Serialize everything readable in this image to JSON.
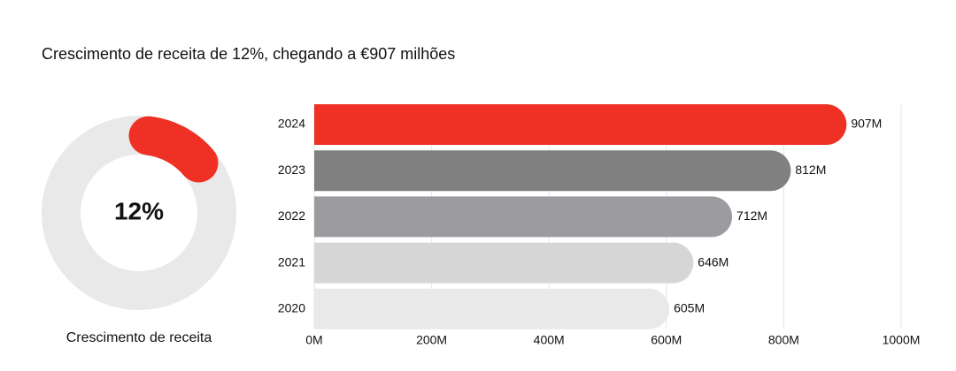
{
  "title": "Crescimento de receita de 12%, chegando a €907 milhões",
  "chart_data": [
    {
      "type": "donut",
      "value": 12,
      "value_label": "12%",
      "label": "Crescimento de receita",
      "color": "#ee3124",
      "track_color": "#e8e9e8"
    },
    {
      "type": "hbar",
      "categories": [
        "2024",
        "2023",
        "2022",
        "2021",
        "2020"
      ],
      "values": [
        907,
        812,
        712,
        646,
        605
      ],
      "value_labels": [
        "907M",
        "812M",
        "712M",
        "646M",
        "605M"
      ],
      "colors": [
        "#ee3124",
        "#7f807f",
        "#9c9ca0",
        "#d6d6d6",
        "#e8e9e8"
      ],
      "xlim": [
        0,
        1000
      ],
      "xticks": [
        {
          "value": 0,
          "label": "0M"
        },
        {
          "value": 200,
          "label": "200M"
        },
        {
          "value": 400,
          "label": "400M"
        },
        {
          "value": 600,
          "label": "600M"
        },
        {
          "value": 800,
          "label": "800M"
        },
        {
          "value": 1000,
          "label": "1000M"
        }
      ],
      "grid": true
    }
  ]
}
